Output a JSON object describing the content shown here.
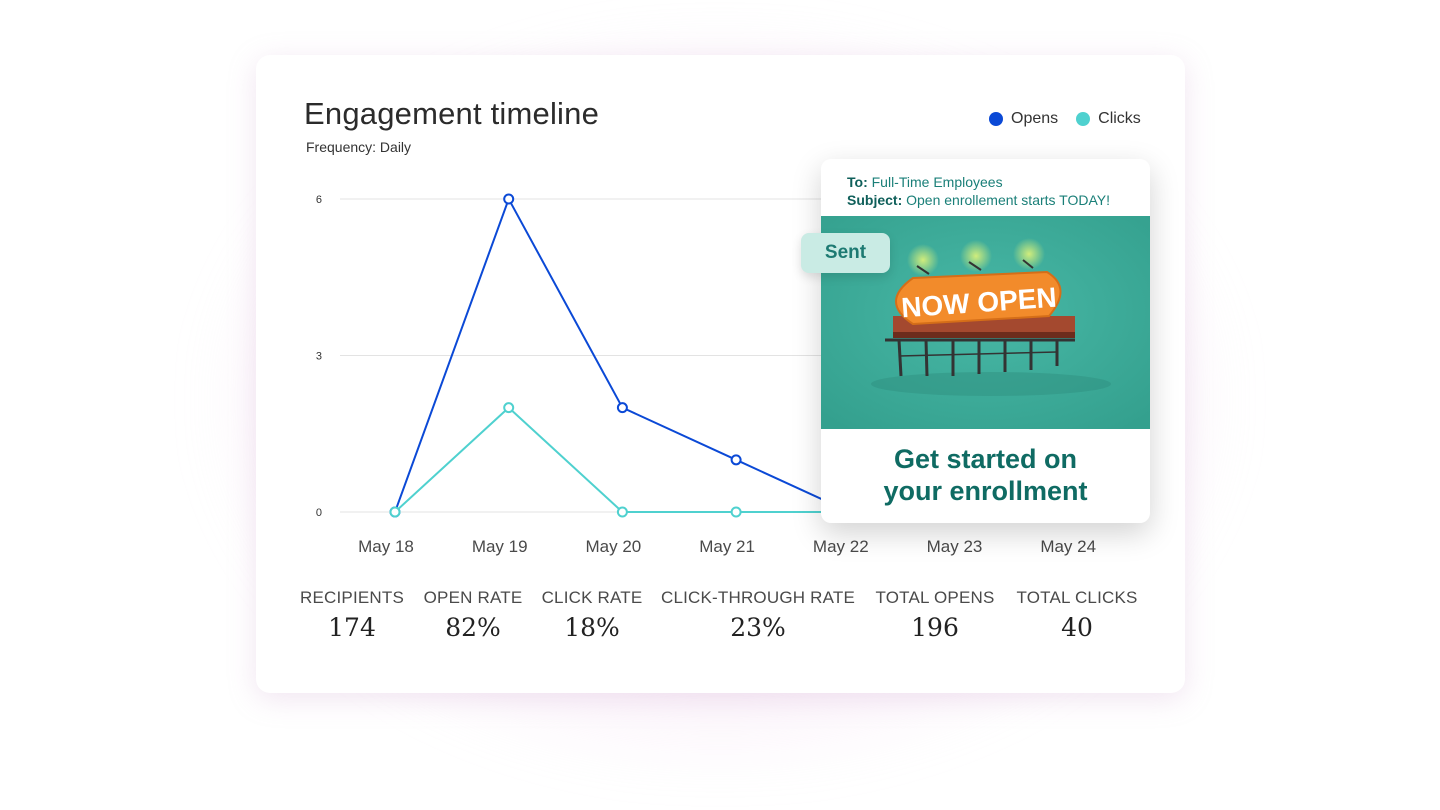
{
  "header": {
    "title": "Engagement timeline",
    "subtitle": "Frequency: Daily"
  },
  "legend": [
    {
      "label": "Opens",
      "color": "#0b49d6"
    },
    {
      "label": "Clicks",
      "color": "#4fd1cf"
    }
  ],
  "chart_data": {
    "type": "line",
    "categories": [
      "May 18",
      "May 19",
      "May 20",
      "May 21",
      "May 22",
      "May 23",
      "May 24"
    ],
    "series": [
      {
        "name": "Opens",
        "color": "#0b49d6",
        "values": [
          0,
          6,
          2,
          1,
          0,
          0,
          0
        ]
      },
      {
        "name": "Clicks",
        "color": "#4fd1cf",
        "values": [
          0,
          2,
          0,
          0,
          0,
          0,
          0
        ]
      }
    ],
    "yticks": [
      0,
      3,
      6
    ],
    "ylim": [
      0,
      6
    ],
    "grid": true,
    "legend_position": "top-right"
  },
  "stats": [
    {
      "label": "RECIPIENTS",
      "value": "174"
    },
    {
      "label": "OPEN RATE",
      "value": "82%"
    },
    {
      "label": "CLICK RATE",
      "value": "18%"
    },
    {
      "label": "CLICK-THROUGH RATE",
      "value": "23%"
    },
    {
      "label": "TOTAL OPENS",
      "value": "196"
    },
    {
      "label": "TOTAL CLICKS",
      "value": "40"
    }
  ],
  "email": {
    "to_label": "To:",
    "to_value": "Full-Time Employees",
    "subject_label": "Subject:",
    "subject_value": "Open enrollement starts TODAY!",
    "billboard_text": "NOW OPEN",
    "cta_line1": "Get started on",
    "cta_line2": "your enrollment",
    "badge": "Sent"
  }
}
